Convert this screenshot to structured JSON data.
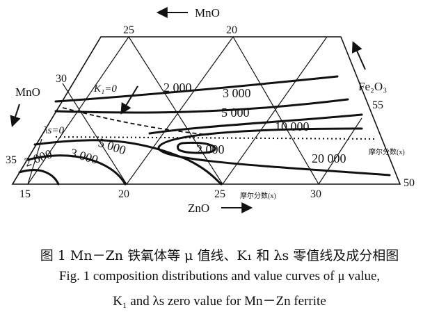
{
  "diagram": {
    "axes": {
      "top": {
        "label": "MnO",
        "ticks": [
          "25",
          "20"
        ]
      },
      "left": {
        "label": "MnO",
        "ticks": [
          "30",
          "35"
        ]
      },
      "right": {
        "label": "Fe₂O₃",
        "ticks": [
          "55",
          "50"
        ]
      },
      "bottom": {
        "label": "ZnO",
        "ticks": [
          "15",
          "20",
          "25",
          "30"
        ]
      }
    },
    "unit_label_right": "摩尔分数(x)",
    "unit_label_bottom": "摩尔分数(x)",
    "zero_lines": {
      "k1": "K₁=0",
      "lambda_s": "λs=0"
    },
    "mu_contours": [
      "2 000",
      "3 000",
      "5 000",
      "10 000",
      "20 000",
      "5 000",
      "3 000",
      "2 000",
      "2 000"
    ]
  },
  "caption": {
    "zh": "图 1   Mn－Zn 铁氧体等 μ 值线、K₁ 和 λs 零值线及成分相图",
    "en_line1": "Fig. 1  composition distributions and value curves of μ value,",
    "en_line2": "K₁ and λs zero value for Mn－Zn ferrite"
  }
}
